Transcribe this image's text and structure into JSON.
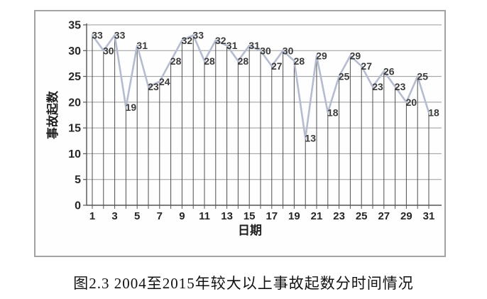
{
  "figure": {
    "caption": "图2.3 2004至2015年较大以上事故起数分时间情况"
  },
  "chart_data": {
    "type": "line",
    "title": "",
    "xlabel": "日期",
    "ylabel": "事故起数",
    "x": [
      1,
      2,
      3,
      4,
      5,
      6,
      7,
      8,
      9,
      10,
      11,
      12,
      13,
      14,
      15,
      16,
      17,
      18,
      19,
      20,
      21,
      22,
      23,
      24,
      25,
      26,
      27,
      28,
      29,
      30,
      31
    ],
    "values": [
      33,
      30,
      33,
      19,
      31,
      23,
      24,
      28,
      32,
      33,
      28,
      32,
      31,
      28,
      31,
      30,
      27,
      30,
      28,
      13,
      29,
      18,
      25,
      29,
      27,
      23,
      26,
      23,
      20,
      25,
      18
    ],
    "ylim": [
      0,
      35
    ],
    "ytick_interval": 5,
    "xtick_labels": [
      "1",
      "3",
      "5",
      "7",
      "9",
      "11",
      "13",
      "15",
      "17",
      "19",
      "21",
      "23",
      "25",
      "27",
      "29",
      "31"
    ],
    "grid": "horizontal",
    "drop_lines": true,
    "data_labels": "shown at every point",
    "legend_position": "none",
    "colors": {
      "line": "#b6bcd0",
      "drop_line": "#4d4d4d",
      "grid": "#999999",
      "axis": "#555555",
      "data_label": "#3a3a3a",
      "tick_label": "#262626",
      "axis_title": "#1f1f1f",
      "border": "#a3a3a3"
    }
  }
}
